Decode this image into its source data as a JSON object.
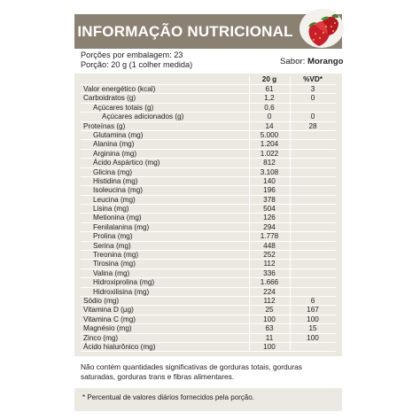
{
  "header": {
    "title": "INFORMAÇÃO NUTRICIONAL",
    "banner_color": "#8b8173",
    "image_icon": "strawberry-icon"
  },
  "serving": {
    "per_package": "Porções por embalagem: 23",
    "portion": "Porção: 20 g (1 colher medida)",
    "flavor_label": "Sabor:",
    "flavor_value": "Morango"
  },
  "table": {
    "columns": [
      "",
      "20 g",
      "%VD*"
    ],
    "rows": [
      {
        "name": "Valor energético (kcal)",
        "amount": "61",
        "vd": "3",
        "indent": 0
      },
      {
        "name": "Carboidratos (g)",
        "amount": "1,2",
        "vd": "0",
        "indent": 0
      },
      {
        "name": "Açúcares totais (g)",
        "amount": "0,6",
        "vd": "",
        "indent": 1
      },
      {
        "name": "Açúcares adicionados (g)",
        "amount": "0",
        "vd": "0",
        "indent": 2
      },
      {
        "name": "Proteínas (g)",
        "amount": "14",
        "vd": "28",
        "indent": 0
      },
      {
        "name": "Glutamina (mg)",
        "amount": "5.000",
        "vd": "",
        "indent": 1
      },
      {
        "name": "Alanina (mg)",
        "amount": "1.204",
        "vd": "",
        "indent": 1
      },
      {
        "name": "Arginina (mg)",
        "amount": "1.022",
        "vd": "",
        "indent": 1
      },
      {
        "name": "Ácido Aspártico (mg)",
        "amount": "812",
        "vd": "",
        "indent": 1
      },
      {
        "name": "Glicina (mg)",
        "amount": "3.108",
        "vd": "",
        "indent": 1
      },
      {
        "name": "Histidina (mg)",
        "amount": "140",
        "vd": "",
        "indent": 1
      },
      {
        "name": "Isoleucina (mg)",
        "amount": "196",
        "vd": "",
        "indent": 1
      },
      {
        "name": "Leucina (mg)",
        "amount": "378",
        "vd": "",
        "indent": 1
      },
      {
        "name": "Lisina (mg)",
        "amount": "504",
        "vd": "",
        "indent": 1
      },
      {
        "name": "Metionina (mg)",
        "amount": "126",
        "vd": "",
        "indent": 1
      },
      {
        "name": "Fenilalanina (mg)",
        "amount": "294",
        "vd": "",
        "indent": 1
      },
      {
        "name": "Prolina (mg)",
        "amount": "1.778",
        "vd": "",
        "indent": 1
      },
      {
        "name": "Serina (mg)",
        "amount": "448",
        "vd": "",
        "indent": 1
      },
      {
        "name": "Treonina (mg)",
        "amount": "252",
        "vd": "",
        "indent": 1
      },
      {
        "name": "Tirosina (mg)",
        "amount": "112",
        "vd": "",
        "indent": 1
      },
      {
        "name": "Valina (mg)",
        "amount": "336",
        "vd": "",
        "indent": 1
      },
      {
        "name": "Hidroxiprolina (mg)",
        "amount": "1.666",
        "vd": "",
        "indent": 1
      },
      {
        "name": "Hidroxilisina (mg)",
        "amount": "224",
        "vd": "",
        "indent": 1
      },
      {
        "name": "Sódio (mg)",
        "amount": "112",
        "vd": "6",
        "indent": 0
      },
      {
        "name": "Vitamina D (µg)",
        "amount": "25",
        "vd": "167",
        "indent": 0
      },
      {
        "name": "Vitamina C (mg)",
        "amount": "100",
        "vd": "100",
        "indent": 0
      },
      {
        "name": "Magnésio (mg)",
        "amount": "63",
        "vd": "15",
        "indent": 0
      },
      {
        "name": "Zinco (mg)",
        "amount": "11",
        "vd": "100",
        "indent": 0
      },
      {
        "name": "Ácido hialurônico (mg)",
        "amount": "100",
        "vd": "",
        "indent": 0
      }
    ]
  },
  "notes": {
    "insignificant": "Não contém quantidades significativas de gorduras totais, gorduras saturadas, gorduras trans e fibras alimentares.",
    "footnote": "* Percentual de valores diários fornecidos pela porção."
  }
}
